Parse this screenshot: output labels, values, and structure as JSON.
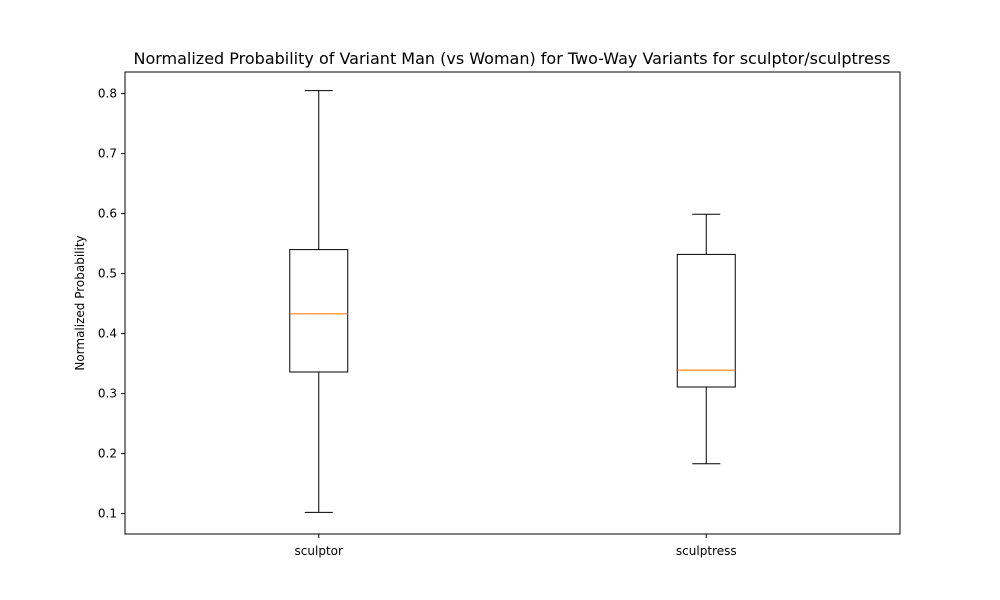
{
  "chart_data": {
    "type": "boxplot",
    "title": "Normalized Probability of Variant Man (vs Woman) for Two-Way Variants for sculptor/sculptress",
    "xlabel": "",
    "ylabel": "Normalized Probability",
    "ylim": [
      0.066,
      0.836
    ],
    "yticks": [
      0.1,
      0.2,
      0.3,
      0.4,
      0.5,
      0.6,
      0.7,
      0.8
    ],
    "ytick_labels": [
      "0.1",
      "0.2",
      "0.3",
      "0.4",
      "0.5",
      "0.6",
      "0.7",
      "0.8"
    ],
    "categories": [
      "sculptor",
      "sculptress"
    ],
    "boxes": [
      {
        "category": "sculptor",
        "whisker_low": 0.102,
        "q1": 0.336,
        "median": 0.433,
        "q3": 0.54,
        "whisker_high": 0.805
      },
      {
        "category": "sculptress",
        "whisker_low": 0.183,
        "q1": 0.311,
        "median": 0.339,
        "q3": 0.532,
        "whisker_high": 0.599
      }
    ],
    "grid": false,
    "colors": {
      "box": "#000000",
      "median": "#ff7f0e",
      "background": "#ffffff"
    }
  }
}
